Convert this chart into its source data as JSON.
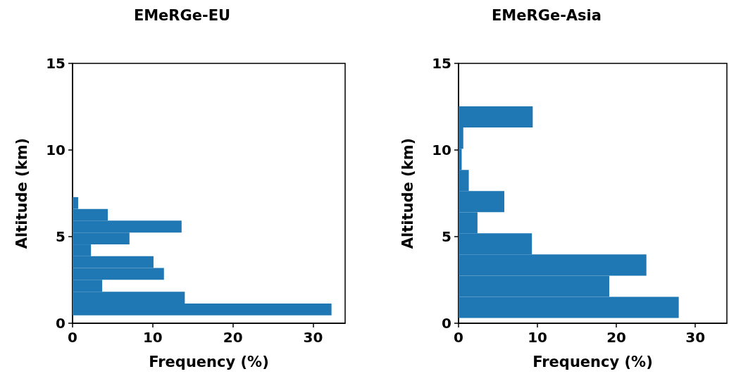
{
  "chart_data": [
    {
      "type": "histogram",
      "title": "EMeRGe-EU",
      "xlabel": "Frequency (%)",
      "ylabel": "Altitude (km)",
      "orientation": "horizontal",
      "color": "#1f77b4",
      "bins": [
        0.46,
        1.14,
        1.82,
        2.51,
        3.19,
        3.87,
        4.55,
        5.23,
        5.92,
        6.6,
        7.28
      ],
      "values": [
        32.3,
        14.0,
        3.7,
        11.4,
        10.1,
        2.3,
        7.1,
        13.6,
        4.4,
        0.7
      ],
      "xlim": [
        0,
        34
      ],
      "xticks": [
        0,
        10,
        20,
        30
      ],
      "ylim": [
        0,
        15
      ],
      "yticks": [
        0,
        5,
        10,
        15
      ]
    },
    {
      "type": "histogram",
      "title": "EMeRGe-Asia",
      "xlabel": "Frequency (%)",
      "ylabel": "Altitude (km)",
      "orientation": "horizontal",
      "color": "#1f77b4",
      "bins": [
        0.3,
        1.52,
        2.74,
        3.97,
        5.19,
        6.41,
        7.63,
        8.85,
        10.07,
        11.3,
        12.52
      ],
      "values": [
        27.9,
        19.1,
        23.8,
        9.3,
        2.4,
        5.8,
        1.3,
        0.4,
        0.6,
        9.4
      ],
      "xlim": [
        0,
        34
      ],
      "xticks": [
        0,
        10,
        20,
        30
      ],
      "ylim": [
        0,
        15
      ],
      "yticks": [
        0,
        5,
        10,
        15
      ]
    }
  ]
}
